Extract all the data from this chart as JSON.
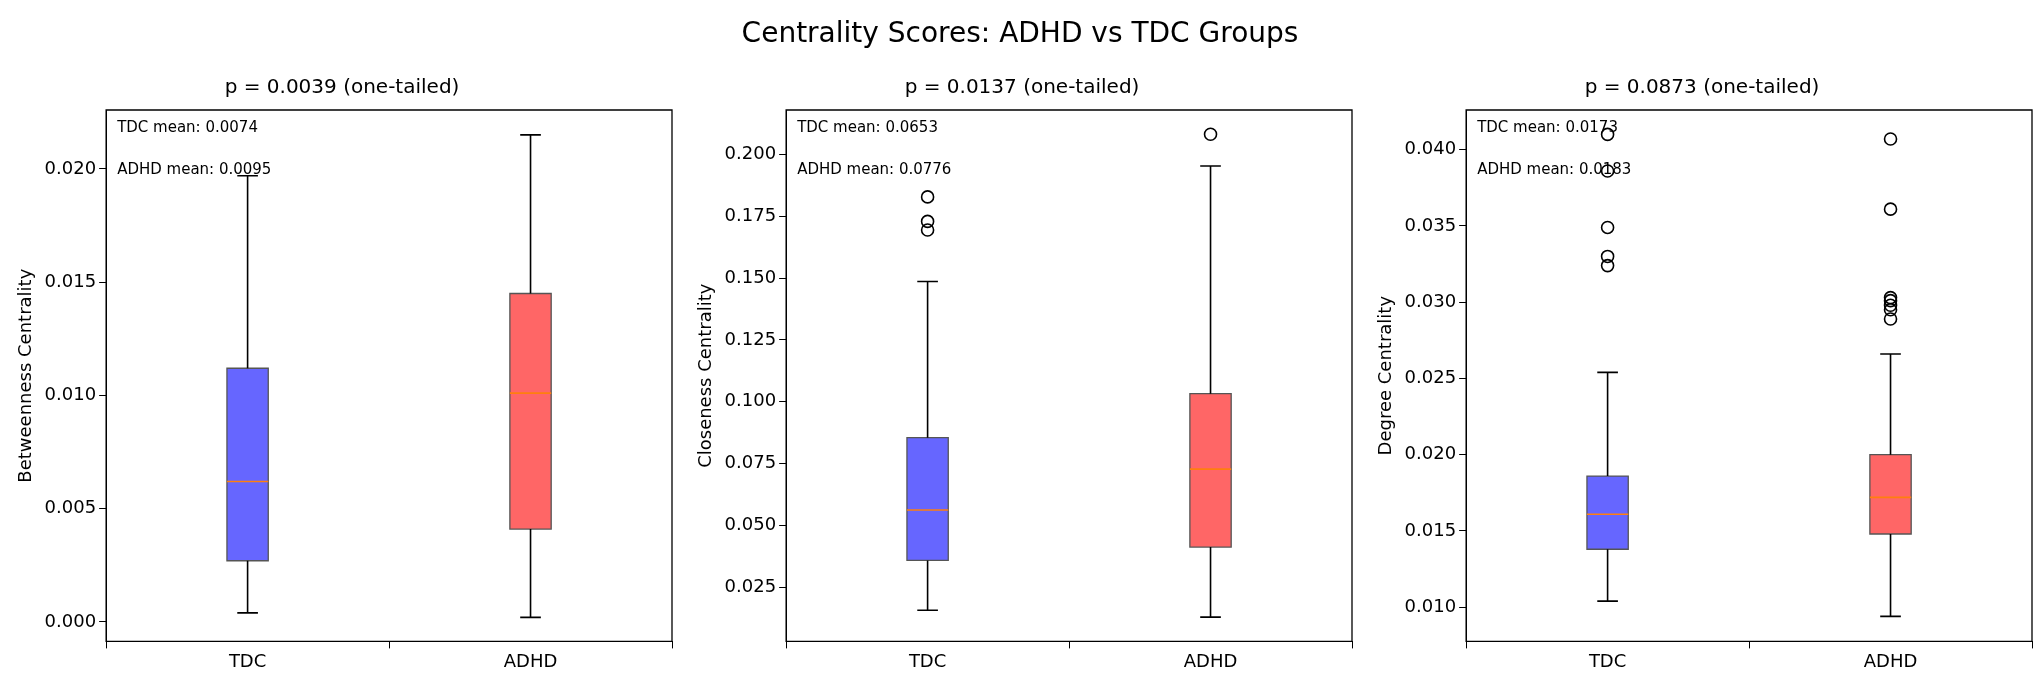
{
  "chart_data": [
    {
      "type": "box",
      "title": "p = 0.0039 (one-tailed)",
      "ylabel": "Betweenness Centrality",
      "categories": [
        "TDC",
        "ADHD"
      ],
      "colors": [
        "#6666ff",
        "#ff6666"
      ],
      "boxes": [
        {
          "low": 0.0004,
          "q1": 0.0027,
          "median": 0.0062,
          "q3": 0.0112,
          "high": 0.0197
        },
        {
          "low": 0.0002,
          "q1": 0.0041,
          "median": 0.0101,
          "q3": 0.0145,
          "high": 0.0215
        }
      ],
      "ylim": [
        -0.00086,
        0.0226
      ],
      "yticks": [
        {
          "value": 0,
          "label": "0.000"
        },
        {
          "value": 0.005,
          "label": "0.005"
        },
        {
          "value": 0.01,
          "label": "0.010"
        },
        {
          "value": 0.015,
          "label": "0.015"
        },
        {
          "value": 0.02,
          "label": "0.020"
        }
      ],
      "annotations": [
        "Centrality Scores: ADHD vs TDC Groups",
        "TDC mean: 0.0074",
        "ADHD mean: 0.0095"
      ],
      "grid": false,
      "legend": false
    },
    {
      "type": "box",
      "title": "p = 0.0137 (one-tailed)",
      "ylabel": "Closeness Centrality",
      "categories": [
        "TDC",
        "ADHD"
      ],
      "colors": [
        "#6666ff",
        "#ff6666"
      ],
      "boxes": [
        {
          "low": 0.0158,
          "q1": 0.0359,
          "median": 0.0563,
          "q3": 0.0855,
          "high": 0.1486,
          "outliers": [
            0.1828,
            0.1729,
            0.1694
          ]
        },
        {
          "low": 0.013,
          "q1": 0.0413,
          "median": 0.0728,
          "q3": 0.1033,
          "high": 0.1953,
          "outliers": [
            0.2081
          ]
        }
      ],
      "ylim": [
        0.0032,
        0.2179
      ],
      "yticks": [
        {
          "value": 0.025,
          "label": "0.025"
        },
        {
          "value": 0.05,
          "label": "0.050"
        },
        {
          "value": 0.075,
          "label": "0.075"
        },
        {
          "value": 0.1,
          "label": "0.100"
        },
        {
          "value": 0.125,
          "label": "0.125"
        },
        {
          "value": 0.15,
          "label": "0.150"
        },
        {
          "value": 0.175,
          "label": "0.175"
        },
        {
          "value": 0.2,
          "label": "0.200"
        }
      ],
      "annotations": [
        "TDC mean: 0.0653",
        "ADHD mean: 0.0776"
      ],
      "grid": false,
      "legend": false
    },
    {
      "type": "box",
      "title": "p = 0.0873 (one-tailed)",
      "ylabel": "Degree Centrality",
      "categories": [
        "TDC",
        "ADHD"
      ],
      "colors": [
        "#6666ff",
        "#ff6666"
      ],
      "boxes": [
        {
          "low": 0.0104,
          "q1": 0.0138,
          "median": 0.0161,
          "q3": 0.0186,
          "high": 0.0254,
          "outliers": [
            0.041,
            0.0386,
            0.0349,
            0.033,
            0.0324
          ]
        },
        {
          "low": 0.0094,
          "q1": 0.0148,
          "median": 0.0172,
          "q3": 0.02,
          "high": 0.0266,
          "outliers": [
            0.0407,
            0.0361,
            0.0303,
            0.0301,
            0.0298,
            0.0295,
            0.0289
          ]
        }
      ],
      "ylim": [
        0.00776,
        0.0426
      ],
      "yticks": [
        {
          "value": 0.01,
          "label": "0.010"
        },
        {
          "value": 0.015,
          "label": "0.015"
        },
        {
          "value": 0.02,
          "label": "0.020"
        },
        {
          "value": 0.025,
          "label": "0.025"
        },
        {
          "value": 0.03,
          "label": "0.030"
        },
        {
          "value": 0.035,
          "label": "0.035"
        },
        {
          "value": 0.04,
          "label": "0.040"
        }
      ],
      "annotations": [
        "TDC mean: 0.0173",
        "ADHD mean: 0.0183"
      ],
      "grid": false,
      "legend": false
    }
  ]
}
